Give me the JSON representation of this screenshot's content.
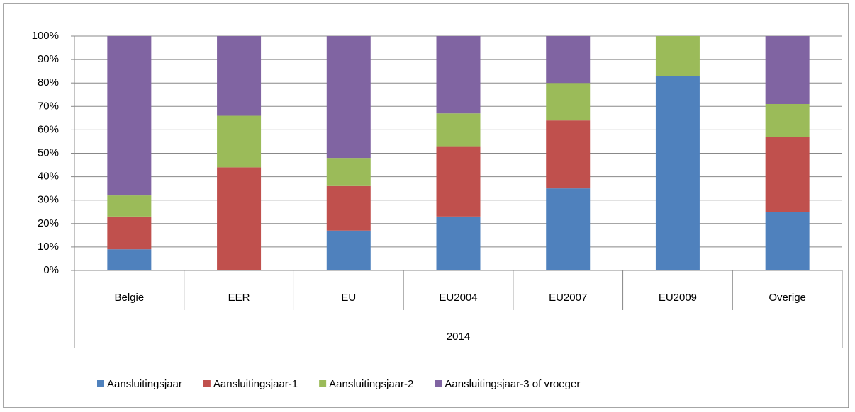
{
  "chart_data": {
    "type": "stacked_bar",
    "categories": [
      "België",
      "EER",
      "EU",
      "EU2004",
      "EU2007",
      "EU2009",
      "Overige"
    ],
    "x_group_label": "2014",
    "series": [
      {
        "name": "Aansluitingsjaar",
        "color": "#4f81bd",
        "values": [
          9,
          0,
          17,
          23,
          35,
          83,
          25
        ]
      },
      {
        "name": "Aansluitingsjaar-1",
        "color": "#c0504d",
        "values": [
          14,
          44,
          19,
          30,
          29,
          0,
          32
        ]
      },
      {
        "name": "Aansluitingsjaar-2",
        "color": "#9bbb59",
        "values": [
          9,
          22,
          12,
          14,
          16,
          17,
          14
        ]
      },
      {
        "name": "Aansluitingsjaar-3 of vroeger",
        "color": "#8064a2",
        "values": [
          68,
          34,
          52,
          33,
          20,
          0,
          29
        ]
      }
    ],
    "ylim": [
      0,
      100
    ],
    "yticks": [
      {
        "value": 0,
        "label": "0%"
      },
      {
        "value": 10,
        "label": "10%"
      },
      {
        "value": 20,
        "label": "20%"
      },
      {
        "value": 30,
        "label": "30%"
      },
      {
        "value": 40,
        "label": "40%"
      },
      {
        "value": 50,
        "label": "50%"
      },
      {
        "value": 60,
        "label": "60%"
      },
      {
        "value": 70,
        "label": "70%"
      },
      {
        "value": 80,
        "label": "80%"
      },
      {
        "value": 90,
        "label": "90%"
      },
      {
        "value": 100,
        "label": "100%"
      }
    ],
    "grid": true,
    "legend": "bottom"
  }
}
